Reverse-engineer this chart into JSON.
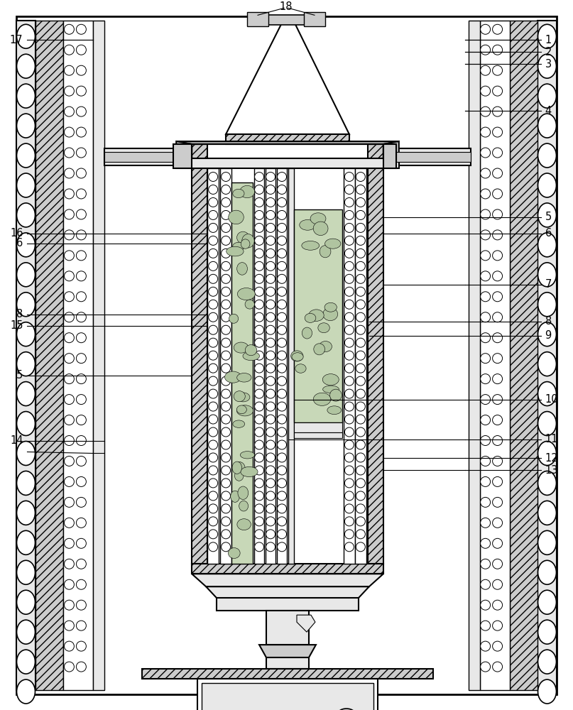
{
  "fig_width": 8.07,
  "fig_height": 10.0,
  "dpi": 100,
  "bg_color": "#ffffff",
  "lc": "#000000",
  "light_gray": "#e8e8e8",
  "med_gray": "#cccccc",
  "dark_gray": "#aaaaaa",
  "green_fill": "#c8d8b8",
  "green_dark": "#b0c4a0",
  "right_labels": {
    "1": 55,
    "2": 72,
    "3": 89,
    "4": 155,
    "5": 305,
    "6": 328,
    "7": 400,
    "8": 452,
    "9": 472,
    "10": 562,
    "11": 618,
    "12": 645,
    "13": 662
  },
  "left_labels": {
    "17": 55,
    "16": 328,
    "6": 342,
    "8": 442,
    "15": 458,
    "5": 528,
    "14": 620
  }
}
